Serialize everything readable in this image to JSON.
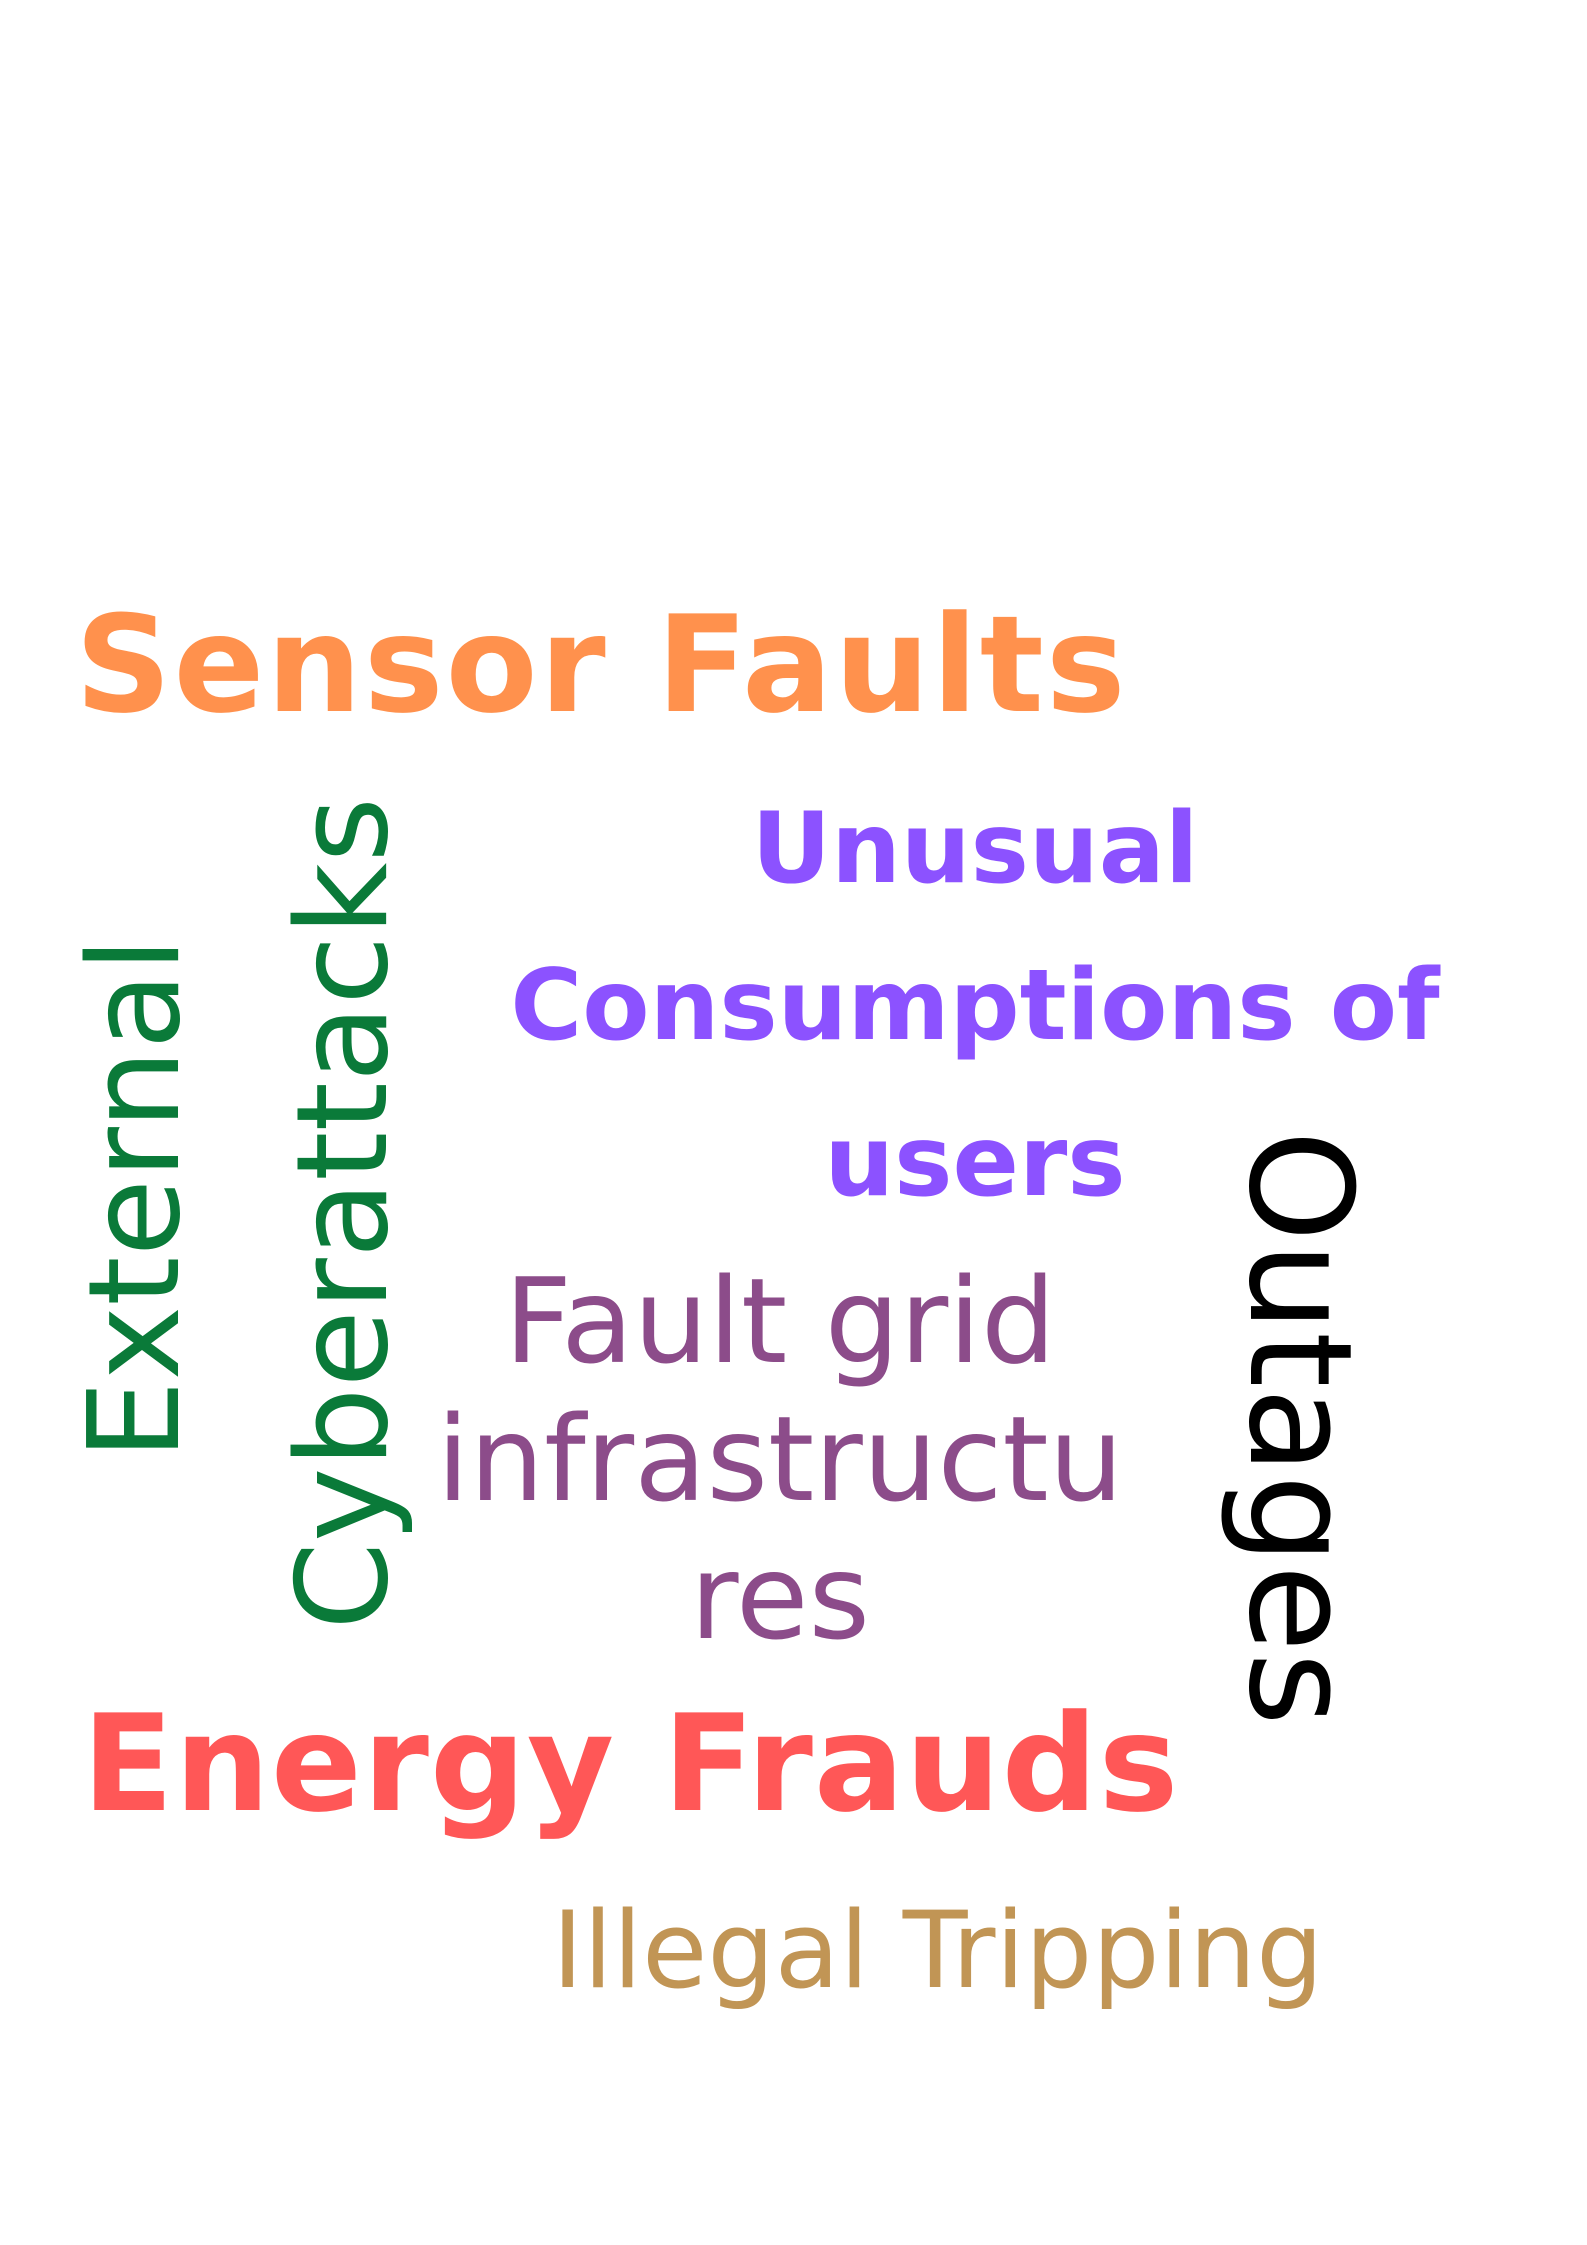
{
  "words": {
    "sensor_faults": "Sensor Faults",
    "unusual_line1": "Unusual",
    "unusual_line2": "Consumptions of",
    "unusual_line3": "users",
    "fault_line1": "Fault grid",
    "fault_line2": "infrastructu",
    "fault_line3": "res",
    "external": "External",
    "cyberattacks": "Cyberattacks",
    "outages": "Outages",
    "energy_frauds": "Energy Frauds",
    "illegal_tripping": "Illegal Tripping"
  },
  "colors": {
    "sensor_faults": "#ff914d",
    "unusual_consumptions": "#8c52ff",
    "fault_grid": "#8c4c8a",
    "external_cyberattacks": "#0a7a39",
    "outages": "#000000",
    "energy_frauds": "#ff5757",
    "illegal_tripping": "#c19555"
  }
}
